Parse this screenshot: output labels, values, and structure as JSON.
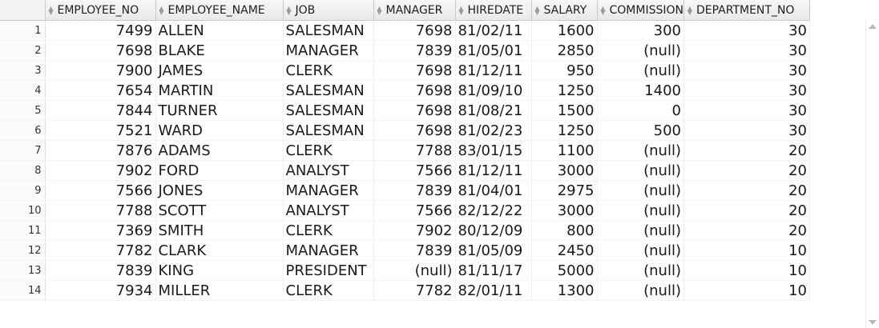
{
  "columns": [
    {
      "key": "employee_no",
      "label": "EMPLOYEE_NO",
      "align": "num"
    },
    {
      "key": "employee_name",
      "label": "EMPLOYEE_NAME",
      "align": "txt"
    },
    {
      "key": "job",
      "label": "JOB",
      "align": "txt"
    },
    {
      "key": "manager",
      "label": "MANAGER",
      "align": "num"
    },
    {
      "key": "hiredate",
      "label": "HIREDATE",
      "align": "txt"
    },
    {
      "key": "salary",
      "label": "SALARY",
      "align": "num"
    },
    {
      "key": "commission",
      "label": "COMMISSION",
      "align": "num"
    },
    {
      "key": "department_no",
      "label": "DEPARTMENT_NO",
      "align": "num"
    }
  ],
  "sort_icon": "sort-arrows-icon",
  "rows": [
    {
      "n": "1",
      "employee_no": "7499",
      "employee_name": "ALLEN",
      "job": "SALESMAN",
      "manager": "7698",
      "hiredate": "81/02/11",
      "salary": "1600",
      "commission": "300",
      "department_no": "30"
    },
    {
      "n": "2",
      "employee_no": "7698",
      "employee_name": "BLAKE",
      "job": "MANAGER",
      "manager": "7839",
      "hiredate": "81/05/01",
      "salary": "2850",
      "commission": "(null)",
      "department_no": "30"
    },
    {
      "n": "3",
      "employee_no": "7900",
      "employee_name": "JAMES",
      "job": "CLERK",
      "manager": "7698",
      "hiredate": "81/12/11",
      "salary": "950",
      "commission": "(null)",
      "department_no": "30"
    },
    {
      "n": "4",
      "employee_no": "7654",
      "employee_name": "MARTIN",
      "job": "SALESMAN",
      "manager": "7698",
      "hiredate": "81/09/10",
      "salary": "1250",
      "commission": "1400",
      "department_no": "30"
    },
    {
      "n": "5",
      "employee_no": "7844",
      "employee_name": "TURNER",
      "job": "SALESMAN",
      "manager": "7698",
      "hiredate": "81/08/21",
      "salary": "1500",
      "commission": "0",
      "department_no": "30"
    },
    {
      "n": "6",
      "employee_no": "7521",
      "employee_name": "WARD",
      "job": "SALESMAN",
      "manager": "7698",
      "hiredate": "81/02/23",
      "salary": "1250",
      "commission": "500",
      "department_no": "30"
    },
    {
      "n": "7",
      "employee_no": "7876",
      "employee_name": "ADAMS",
      "job": "CLERK",
      "manager": "7788",
      "hiredate": "83/01/15",
      "salary": "1100",
      "commission": "(null)",
      "department_no": "20"
    },
    {
      "n": "8",
      "employee_no": "7902",
      "employee_name": "FORD",
      "job": "ANALYST",
      "manager": "7566",
      "hiredate": "81/12/11",
      "salary": "3000",
      "commission": "(null)",
      "department_no": "20"
    },
    {
      "n": "9",
      "employee_no": "7566",
      "employee_name": "JONES",
      "job": "MANAGER",
      "manager": "7839",
      "hiredate": "81/04/01",
      "salary": "2975",
      "commission": "(null)",
      "department_no": "20"
    },
    {
      "n": "10",
      "employee_no": "7788",
      "employee_name": "SCOTT",
      "job": "ANALYST",
      "manager": "7566",
      "hiredate": "82/12/22",
      "salary": "3000",
      "commission": "(null)",
      "department_no": "20"
    },
    {
      "n": "11",
      "employee_no": "7369",
      "employee_name": "SMITH",
      "job": "CLERK",
      "manager": "7902",
      "hiredate": "80/12/09",
      "salary": "800",
      "commission": "(null)",
      "department_no": "20"
    },
    {
      "n": "12",
      "employee_no": "7782",
      "employee_name": "CLARK",
      "job": "MANAGER",
      "manager": "7839",
      "hiredate": "81/05/09",
      "salary": "2450",
      "commission": "(null)",
      "department_no": "10"
    },
    {
      "n": "13",
      "employee_no": "7839",
      "employee_name": "KING",
      "job": "PRESIDENT",
      "manager": "(null)",
      "hiredate": "81/11/17",
      "salary": "5000",
      "commission": "(null)",
      "department_no": "10"
    },
    {
      "n": "14",
      "employee_no": "7934",
      "employee_name": "MILLER",
      "job": "CLERK",
      "manager": "7782",
      "hiredate": "82/01/11",
      "salary": "1300",
      "commission": "(null)",
      "department_no": "10"
    }
  ]
}
